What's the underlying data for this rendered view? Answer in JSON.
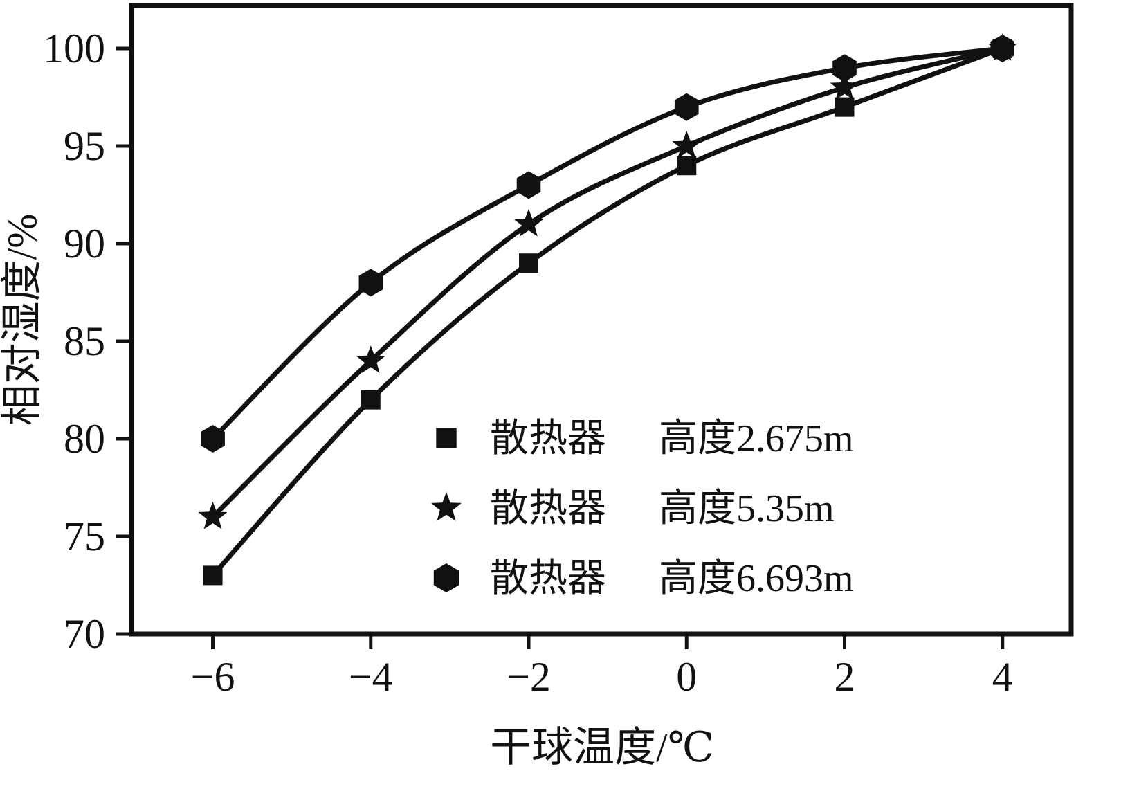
{
  "chart_data": {
    "type": "line",
    "title": "",
    "xlabel": "干球温度/℃",
    "ylabel": "相对湿度/%",
    "x": [
      -6,
      -4,
      -2,
      0,
      2,
      4
    ],
    "series": [
      {
        "name": "散热器 高度2.675m",
        "legend_device": "散热器",
        "legend_height": "高度2.675m",
        "marker": "square",
        "values": [
          73,
          82,
          89,
          94,
          97,
          100
        ]
      },
      {
        "name": "散热器 高度5.35m",
        "legend_device": "散热器",
        "legend_height": "高度5.35m",
        "marker": "star",
        "values": [
          76,
          84,
          91,
          95,
          98,
          100
        ]
      },
      {
        "name": "散热器 高度6.693m",
        "legend_device": "散热器",
        "legend_height": "高度6.693m",
        "marker": "hexagon",
        "values": [
          80,
          88,
          93,
          97,
          99,
          100
        ]
      }
    ],
    "x_ticks": [
      -6,
      -4,
      -2,
      0,
      2,
      4
    ],
    "y_ticks": [
      70,
      75,
      80,
      85,
      90,
      95,
      100
    ],
    "xlim": [
      -7.03,
      4.87
    ],
    "ylim": [
      70,
      102.2
    ],
    "grid": false,
    "legend_position": "inside-lower-right",
    "colors": {
      "line": "#111111",
      "background": "#ffffff"
    }
  }
}
